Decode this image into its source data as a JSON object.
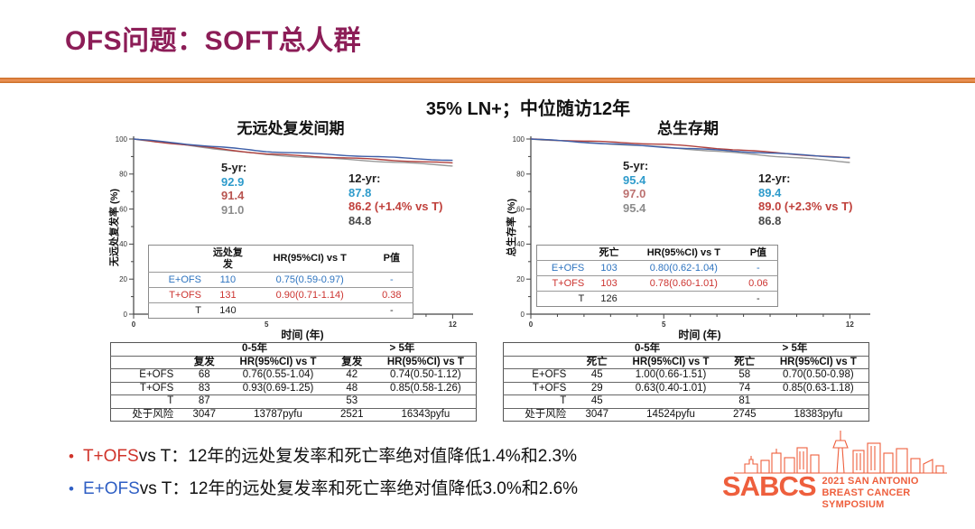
{
  "slide": {
    "title": "OFS问题：SOFT总人群",
    "subtitle": "35% LN+；中位随访12年"
  },
  "colors": {
    "title_maroon": "#8C1D57",
    "divider_orange": "#E8813E",
    "annotation_blue": "#2E9BCB",
    "annotation_red": "#C0413C",
    "annotation_gray": "#8C8C8C",
    "table_blue": "#2E74C0",
    "table_red": "#CC3430",
    "bullet_red": "#D0342B",
    "bullet_blue": "#2F5FC4",
    "logo_orange": "#EE5F3D"
  },
  "chart_data": [
    {
      "type": "line",
      "title": "无远处复发间期",
      "xlabel": "时间 (年)",
      "ylabel": "无远处复发率 (%)",
      "xlim": [
        0,
        12.7
      ],
      "ylim": [
        0,
        100
      ],
      "x_ticks_labeled": [
        0,
        5,
        12
      ],
      "y_ticks_labeled": [
        0,
        20,
        40,
        60,
        80,
        100
      ],
      "grid": false,
      "series": [
        {
          "name": "E+OFS",
          "color": "#3E5FA8",
          "x": [
            0,
            5,
            12
          ],
          "values": [
            100,
            92.9,
            87.8
          ]
        },
        {
          "name": "T+OFS",
          "color": "#B0413E",
          "x": [
            0,
            5,
            12
          ],
          "values": [
            100,
            91.4,
            86.2
          ]
        },
        {
          "name": "T",
          "color": "#999999",
          "x": [
            0,
            5,
            12
          ],
          "values": [
            100,
            91.0,
            84.8
          ]
        }
      ],
      "annotations": {
        "five_yr": {
          "label": "5-yr:",
          "values": [
            {
              "text": "92.9",
              "color": "#2E9BCB"
            },
            {
              "text": "91.4",
              "color": "#B85450"
            },
            {
              "text": "91.0",
              "color": "#8C8C8C"
            }
          ]
        },
        "twelve_yr": {
          "label": "12-yr:",
          "values": [
            {
              "text": "87.8",
              "color": "#2E9BCB"
            },
            {
              "text": "86.2 (+1.4% vs T)",
              "color": "#C0413C"
            },
            {
              "text": "84.8",
              "color": "#4A4A4A"
            }
          ]
        }
      },
      "inset_table": {
        "headers": [
          "",
          "远处复发",
          "HR(95%CI) vs T",
          "P值"
        ],
        "rows": [
          {
            "cells": [
              "E+OFS",
              "110",
              "0.75(0.59-0.97)",
              "-"
            ],
            "color": "#2E74C0"
          },
          {
            "cells": [
              "T+OFS",
              "131",
              "0.90(0.71-1.14)",
              "0.38"
            ],
            "color": "#CC3430"
          },
          {
            "cells": [
              "T",
              "140",
              "",
              "-"
            ],
            "color": "#222222"
          }
        ]
      },
      "bottom_table": {
        "group_headers": [
          "0-5年",
          "> 5年"
        ],
        "col_headers": [
          "",
          "复发",
          "HR(95%CI) vs T",
          "复发",
          "HR(95%CI) vs T"
        ],
        "rows": [
          [
            "E+OFS",
            "68",
            "0.76(0.55-1.04)",
            "42",
            "0.74(0.50-1.12)"
          ],
          [
            "T+OFS",
            "83",
            "0.93(0.69-1.25)",
            "48",
            "0.85(0.58-1.26)"
          ],
          [
            "T",
            "87",
            "",
            "53",
            ""
          ],
          [
            "处于风险",
            "3047",
            "13787pyfu",
            "2521",
            "16343pyfu"
          ]
        ]
      }
    },
    {
      "type": "line",
      "title": "总生存期",
      "xlabel": "时间 (年)",
      "ylabel": "总生存率 (%)",
      "xlim": [
        0,
        12.7
      ],
      "ylim": [
        0,
        100
      ],
      "x_ticks_labeled": [
        0,
        5,
        12
      ],
      "y_ticks_labeled": [
        0,
        20,
        40,
        60,
        80,
        100
      ],
      "grid": false,
      "series": [
        {
          "name": "E+OFS",
          "color": "#3E5FA8",
          "x": [
            0,
            5,
            12
          ],
          "values": [
            100,
            95.4,
            89.4
          ]
        },
        {
          "name": "T+OFS",
          "color": "#B0413E",
          "x": [
            0,
            5,
            12
          ],
          "values": [
            100,
            97.0,
            89.0
          ]
        },
        {
          "name": "T",
          "color": "#999999",
          "x": [
            0,
            5,
            12
          ],
          "values": [
            100,
            95.4,
            86.8
          ]
        }
      ],
      "annotations": {
        "five_yr": {
          "label": "5-yr:",
          "values": [
            {
              "text": "95.4",
              "color": "#2E9BCB"
            },
            {
              "text": "97.0",
              "color": "#BC7170"
            },
            {
              "text": "95.4",
              "color": "#8C8C8C"
            }
          ]
        },
        "twelve_yr": {
          "label": "12-yr:",
          "values": [
            {
              "text": "89.4",
              "color": "#2E9BCB"
            },
            {
              "text": "89.0 (+2.3% vs T)",
              "color": "#C0413C"
            },
            {
              "text": "86.8",
              "color": "#4A4A4A"
            }
          ]
        }
      },
      "inset_table": {
        "headers": [
          "",
          "死亡",
          "HR(95%CI) vs T",
          "P值"
        ],
        "rows": [
          {
            "cells": [
              "E+OFS",
              "103",
              "0.80(0.62-1.04)",
              "-"
            ],
            "color": "#2E74C0"
          },
          {
            "cells": [
              "T+OFS",
              "103",
              "0.78(0.60-1.01)",
              "0.06"
            ],
            "color": "#CC3430"
          },
          {
            "cells": [
              "T",
              "126",
              "",
              "-"
            ],
            "color": "#222222"
          }
        ]
      },
      "bottom_table": {
        "group_headers": [
          "0-5年",
          "> 5年"
        ],
        "col_headers": [
          "",
          "死亡",
          "HR(95%CI) vs T",
          "死亡",
          "HR(95%CI) vs T"
        ],
        "rows": [
          [
            "E+OFS",
            "45",
            "1.00(0.66-1.51)",
            "58",
            "0.70(0.50-0.98)"
          ],
          [
            "T+OFS",
            "29",
            "0.63(0.40-1.01)",
            "74",
            "0.85(0.63-1.18)"
          ],
          [
            "T",
            "45",
            "",
            "81",
            ""
          ],
          [
            "处于风险",
            "3047",
            "14524pyfu",
            "2745",
            "18383pyfu"
          ]
        ]
      }
    }
  ],
  "bullets": [
    {
      "prefix": "T+OFS",
      "prefix_color": "#D0342B",
      "rest": " vs T：12年的远处复发率和死亡率绝对值降低1.4%和2.3%"
    },
    {
      "prefix": "E+OFS",
      "prefix_color": "#2F5FC4",
      "rest": " vs T：12年的远处复发率和死亡率绝对值降低3.0%和2.6%"
    }
  ],
  "logo": {
    "abbr": "SABCS",
    "line1": "2021 SAN ANTONIO",
    "line2": "BREAST CANCER SYMPOSIUM"
  }
}
